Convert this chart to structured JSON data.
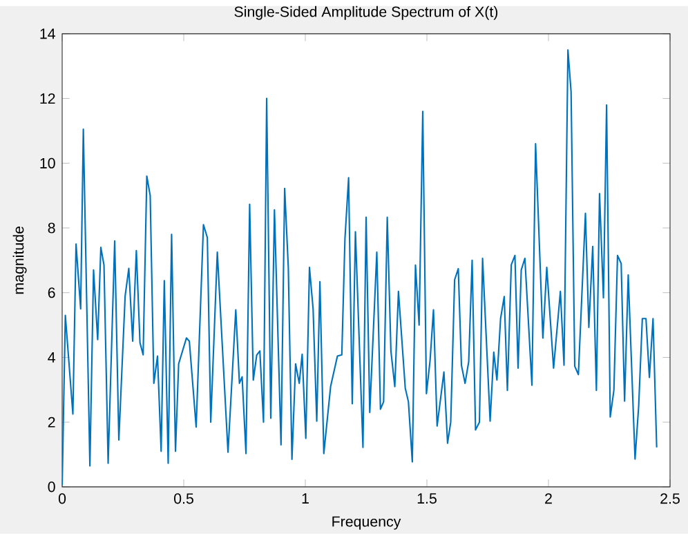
{
  "chart_data": {
    "type": "line",
    "title": "Single-Sided Amplitude Spectrum of X(t)",
    "xlabel": "Frequency",
    "ylabel": "magnitude",
    "xlim": [
      0,
      2.5
    ],
    "xticks": [
      0,
      0.5,
      1,
      1.5,
      2,
      2.5
    ],
    "ylim": [
      0,
      14
    ],
    "yticks": [
      0,
      2,
      4,
      6,
      8,
      10,
      12,
      14
    ],
    "grid": false,
    "series": [
      {
        "color": "#0072bd",
        "x": [
          0,
          0.013,
          0.044,
          0.057,
          0.076,
          0.087,
          0.114,
          0.129,
          0.146,
          0.159,
          0.172,
          0.189,
          0.216,
          0.233,
          0.259,
          0.274,
          0.29,
          0.305,
          0.32,
          0.333,
          0.348,
          0.362,
          0.377,
          0.392,
          0.407,
          0.42,
          0.436,
          0.45,
          0.466,
          0.479,
          0.511,
          0.523,
          0.551,
          0.581,
          0.597,
          0.611,
          0.638,
          0.682,
          0.714,
          0.729,
          0.74,
          0.756,
          0.771,
          0.786,
          0.8,
          0.813,
          0.828,
          0.841,
          0.858,
          0.873,
          0.9,
          0.915,
          0.93,
          0.945,
          0.96,
          0.975,
          0.987,
          1.002,
          1.017,
          1.032,
          1.047,
          1.06,
          1.076,
          1.104,
          1.132,
          1.15,
          1.163,
          1.178,
          1.193,
          1.206,
          1.237,
          1.25,
          1.265,
          1.294,
          1.309,
          1.322,
          1.337,
          1.352,
          1.368,
          1.383,
          1.411,
          1.424,
          1.44,
          1.453,
          1.468,
          1.483,
          1.498,
          1.513,
          1.527,
          1.542,
          1.57,
          1.585,
          1.598,
          1.614,
          1.629,
          1.642,
          1.657,
          1.672,
          1.686,
          1.7,
          1.716,
          1.729,
          1.76,
          1.775,
          1.788,
          1.803,
          1.818,
          1.831,
          1.847,
          1.862,
          1.875,
          1.888,
          1.903,
          1.932,
          1.947,
          1.977,
          1.993,
          2.021,
          2.049,
          2.064,
          2.08,
          2.093,
          2.108,
          2.123,
          2.152,
          2.166,
          2.182,
          2.197,
          2.21,
          2.226,
          2.239,
          2.254,
          2.269,
          2.284,
          2.299,
          2.313,
          2.328,
          2.356,
          2.371,
          2.386,
          2.401,
          2.415,
          2.43,
          2.445
        ],
        "values": [
          0.05,
          5.3,
          2.25,
          7.5,
          5.5,
          11.05,
          0.65,
          6.7,
          4.55,
          7.4,
          6.85,
          0.73,
          7.6,
          1.45,
          5.9,
          6.75,
          4.5,
          7.3,
          4.45,
          4.08,
          9.6,
          9.0,
          3.2,
          4.04,
          1.1,
          6.37,
          0.73,
          7.8,
          1.1,
          3.8,
          4.6,
          4.5,
          1.85,
          8.1,
          7.7,
          2.0,
          7.25,
          1.07,
          5.47,
          3.2,
          3.4,
          1.03,
          8.73,
          3.3,
          4.07,
          4.2,
          2.0,
          12.0,
          2.12,
          8.56,
          1.3,
          9.22,
          6.78,
          0.85,
          3.8,
          3.2,
          4.1,
          1.5,
          6.78,
          5.5,
          2.03,
          6.34,
          1.03,
          3.1,
          4.04,
          4.08,
          7.67,
          9.55,
          2.57,
          7.88,
          1.22,
          8.33,
          2.3,
          7.25,
          2.4,
          2.63,
          8.33,
          4.2,
          3.1,
          6.04,
          3.05,
          2.63,
          0.77,
          6.85,
          5.0,
          11.6,
          2.88,
          3.9,
          5.47,
          1.88,
          3.55,
          1.35,
          2.0,
          6.4,
          6.74,
          3.76,
          3.2,
          3.87,
          7.0,
          1.76,
          2.0,
          7.06,
          2.03,
          4.16,
          3.3,
          5.2,
          5.88,
          2.98,
          6.86,
          7.15,
          3.67,
          6.7,
          7.06,
          3.14,
          10.6,
          4.6,
          6.78,
          3.67,
          6.04,
          3.76,
          13.5,
          12.2,
          3.73,
          3.47,
          8.45,
          4.93,
          7.43,
          2.98,
          9.06,
          5.84,
          11.8,
          2.16,
          2.98,
          7.15,
          6.9,
          2.65,
          6.55,
          0.86,
          2.5,
          5.2,
          5.2,
          3.38,
          5.2,
          1.22
        ]
      }
    ]
  }
}
